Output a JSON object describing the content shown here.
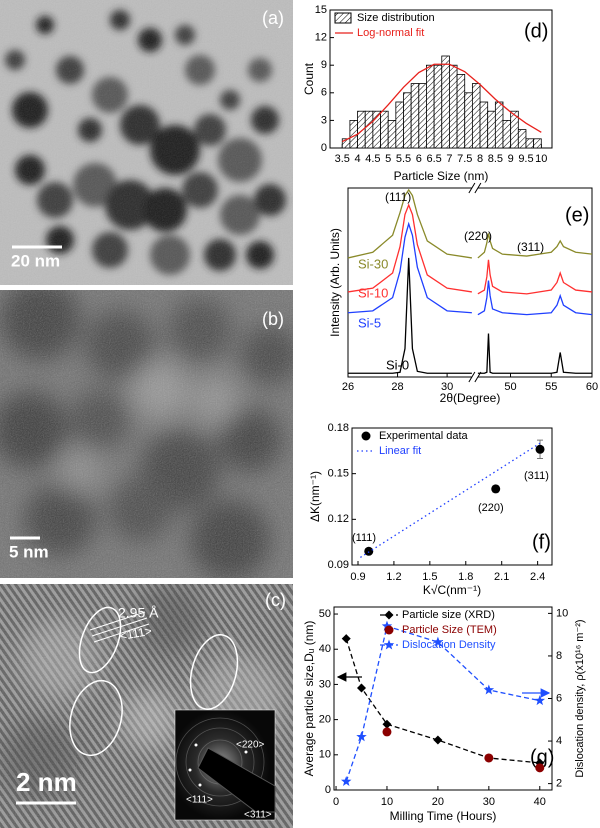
{
  "images": [
    {
      "label": "(a)",
      "scale_bar": "20 nm"
    },
    {
      "label": "(b)",
      "scale_bar": "5 nm"
    },
    {
      "label": "(c)",
      "scale_bar": "2 nm",
      "annotations": [
        "2.95 Å",
        "<111>"
      ],
      "inset_labels": [
        "<220>",
        "<111>",
        "<311>"
      ]
    }
  ],
  "chart_data": [
    {
      "type": "histogram",
      "panel_label": "(d)",
      "xlabel": "Particle Size (nm)",
      "ylabel": "Count",
      "xlim": [
        3.1,
        10.35
      ],
      "xticks": [
        3.5,
        4,
        4.5,
        5,
        5.5,
        6,
        6.5,
        7,
        7.5,
        8,
        8.5,
        9,
        9.5,
        10
      ],
      "ylim": [
        0,
        15
      ],
      "yticks": [
        0,
        3,
        6,
        9,
        12,
        15
      ],
      "legend": "upper left",
      "series": [
        {
          "name": "Size distribution",
          "color": "#000000",
          "bins": [
            3.5,
            3.75,
            4,
            4.25,
            4.5,
            4.75,
            5,
            5.25,
            5.5,
            5.75,
            6,
            6.25,
            6.5,
            6.75,
            7,
            7.25,
            7.5,
            7.75,
            8,
            8.25,
            8.5,
            8.75,
            9,
            9.25,
            9.5,
            9.75,
            10
          ],
          "values": [
            1,
            3,
            4,
            4,
            4,
            4,
            3,
            5,
            6,
            7,
            7,
            9,
            9,
            10,
            9,
            8,
            6,
            7,
            5,
            4,
            5,
            3,
            4,
            2,
            1,
            1
          ]
        },
        {
          "name": "Log-normal fit",
          "color": "#e8211c",
          "style": "solid",
          "x": [
            3.5,
            4,
            4.5,
            5,
            5.5,
            6,
            6.5,
            7,
            7.5,
            8,
            8.5,
            9,
            9.5,
            10
          ],
          "values": [
            0.7,
            1.5,
            2.9,
            4.7,
            6.6,
            8.2,
            9.1,
            9.1,
            8.3,
            6.9,
            5.3,
            3.9,
            2.7,
            1.7
          ]
        }
      ]
    },
    {
      "type": "line",
      "panel_label": "(e)",
      "xlabel": "2θ(Degree)",
      "ylabel": "Intensity (Arb. Units)",
      "xlim": [
        26,
        60
      ],
      "x_break": [
        31,
        46
      ],
      "xticks": [
        26,
        28,
        30,
        50,
        55,
        60
      ],
      "ylim": [
        0,
        10
      ],
      "annotations": [
        "(111)",
        "(220)",
        "(311)"
      ],
      "series": [
        {
          "name": "Si-30",
          "color": "#8a8a2a",
          "style": "solid",
          "x": [
            26,
            27,
            27.8,
            28.1,
            28.3,
            28.45,
            28.6,
            28.8,
            29.2,
            30,
            31,
            46,
            46.8,
            47.1,
            47.3,
            47.5,
            47.8,
            49,
            52,
            55,
            55.7,
            56.1,
            56.5,
            58,
            60
          ],
          "values": [
            6.3,
            6.6,
            7.5,
            8.7,
            9.6,
            9.9,
            9.6,
            8.6,
            7.2,
            6.5,
            6.3,
            6.3,
            6.6,
            7.1,
            7.6,
            7.2,
            6.8,
            6.5,
            6.4,
            6.6,
            6.9,
            7.2,
            6.9,
            6.6,
            6.5
          ]
        },
        {
          "name": "Si-10",
          "color": "#ff3030",
          "style": "solid",
          "x": [
            26,
            27,
            27.8,
            28.1,
            28.3,
            28.45,
            28.6,
            28.8,
            29.2,
            30,
            31,
            46,
            46.8,
            47.1,
            47.3,
            47.5,
            47.8,
            49,
            52,
            55,
            55.7,
            56.1,
            56.5,
            58,
            60
          ],
          "values": [
            4.5,
            4.7,
            5.5,
            6.9,
            8.6,
            9.1,
            8.6,
            7.0,
            5.4,
            4.7,
            4.5,
            4.4,
            4.6,
            5.3,
            6.2,
            5.4,
            4.8,
            4.5,
            4.4,
            4.6,
            5.0,
            5.5,
            5.0,
            4.6,
            4.5
          ]
        },
        {
          "name": "Si-5",
          "color": "#2040ff",
          "style": "solid",
          "x": [
            26,
            27,
            27.8,
            28.1,
            28.3,
            28.45,
            28.6,
            28.8,
            29.2,
            30,
            31,
            46,
            46.8,
            47.1,
            47.3,
            47.5,
            47.8,
            49,
            52,
            55,
            55.7,
            56.1,
            56.5,
            58,
            60
          ],
          "values": [
            3.4,
            3.5,
            4.2,
            5.6,
            7.4,
            8.1,
            7.5,
            5.8,
            4.2,
            3.5,
            3.4,
            3.3,
            3.5,
            4.2,
            5.1,
            4.3,
            3.6,
            3.4,
            3.3,
            3.4,
            3.8,
            4.3,
            3.8,
            3.4,
            3.3
          ]
        },
        {
          "name": "Si-0",
          "color": "#000000",
          "style": "solid",
          "x": [
            26,
            27,
            27.8,
            28.1,
            28.3,
            28.45,
            28.6,
            28.8,
            29.2,
            30,
            31,
            46,
            46.8,
            47.1,
            47.3,
            47.5,
            47.8,
            49,
            52,
            55,
            55.7,
            56.1,
            56.5,
            58,
            60
          ],
          "values": [
            0.2,
            0.2,
            0.2,
            0.25,
            1.5,
            6.3,
            1.5,
            0.3,
            0.2,
            0.2,
            0.2,
            0.2,
            0.2,
            0.25,
            2.3,
            0.25,
            0.2,
            0.2,
            0.2,
            0.2,
            0.25,
            1.3,
            0.25,
            0.2,
            0.2
          ]
        }
      ]
    },
    {
      "type": "scatter",
      "panel_label": "(f)",
      "xlabel": "K√C(nm⁻¹)",
      "ylabel": "ΔK(nm⁻¹)",
      "xlim": [
        0.85,
        2.52
      ],
      "xticks": [
        0.9,
        1.2,
        1.5,
        1.8,
        2.1,
        2.4
      ],
      "ylim": [
        0.09,
        0.18
      ],
      "yticks": [
        0.09,
        0.12,
        0.15,
        0.18
      ],
      "legend": "upper left",
      "point_labels": [
        "(111)",
        "(220)",
        "(311)"
      ],
      "series": [
        {
          "name": "Experimental data",
          "color": "#000000",
          "marker": "circle",
          "style": "none",
          "x": [
            0.99,
            2.05,
            2.42
          ],
          "values": [
            0.099,
            0.14,
            0.166
          ],
          "errors": [
            0.001,
            0.002,
            0.006
          ]
        },
        {
          "name": "Linear fit",
          "color": "#1f3fff",
          "style": "dotted",
          "x": [
            0.92,
            2.42
          ],
          "values": [
            0.095,
            0.17
          ]
        }
      ]
    },
    {
      "type": "line",
      "panel_label": "(g)",
      "xlabel": "Milling Time (Hours)",
      "ylabel": "Average particle size,Dᵤ (nm)",
      "y2label": "Dislocation density, ρ(x10¹⁶ m⁻²)",
      "xlim": [
        -0.4,
        42.4
      ],
      "xticks": [
        0,
        10,
        20,
        30,
        40
      ],
      "ylim": [
        0,
        52
      ],
      "yticks": [
        0,
        10,
        20,
        30,
        40,
        50
      ],
      "y2lim": [
        1.7,
        10.3
      ],
      "y2ticks": [
        2,
        4,
        6,
        8,
        10
      ],
      "legend": "upper right",
      "series": [
        {
          "name": "Particle size (XRD)",
          "color": "#000000",
          "marker": "diamond",
          "style": "dashed",
          "x": [
            2,
            5,
            10,
            20,
            30,
            40
          ],
          "values": [
            43,
            29,
            18.7,
            14.2,
            9.1,
            7.7
          ]
        },
        {
          "name": "Particle Size (TEM)",
          "color": "#8b0000",
          "marker": "circle",
          "style": "none",
          "x": [
            10,
            30,
            40
          ],
          "values": [
            16.5,
            9.1,
            6.3
          ]
        },
        {
          "name": "Dislocation Density",
          "color": "#1f4fff",
          "marker": "star",
          "style": "dashed",
          "axis": "y2",
          "x": [
            2,
            5,
            10,
            20,
            30,
            40
          ],
          "values": [
            2.1,
            4.2,
            9.4,
            8.65,
            6.4,
            5.9
          ]
        }
      ]
    }
  ]
}
